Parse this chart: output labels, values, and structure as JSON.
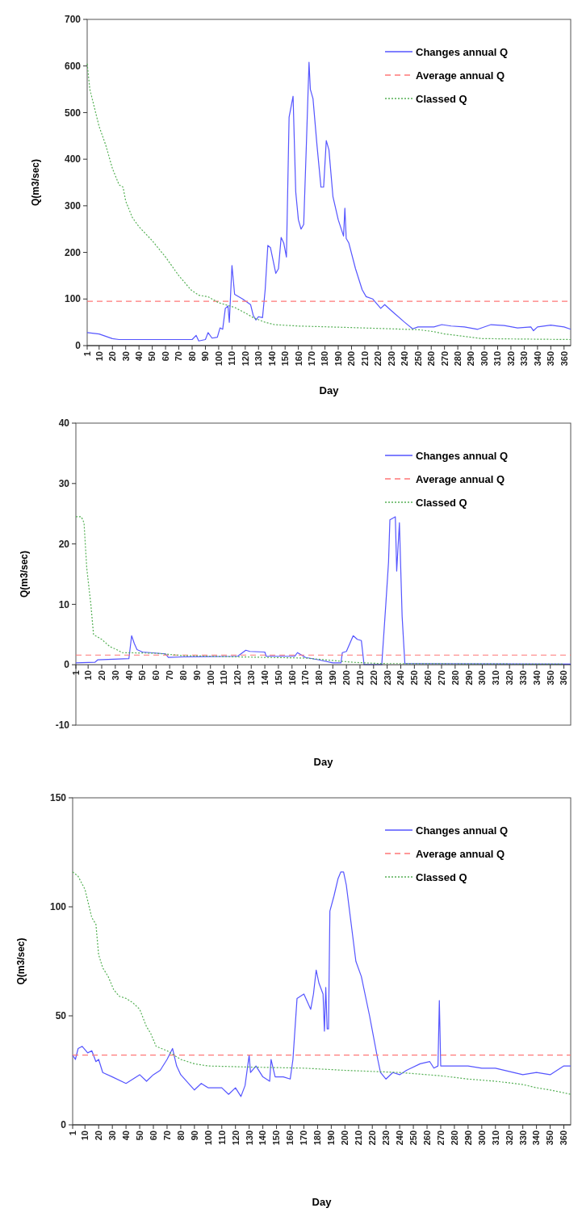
{
  "chart_data": [
    {
      "type": "line",
      "xlabel": "Day",
      "ylabel": "Q(m3/sec)",
      "xlim": [
        1,
        365
      ],
      "xticks": [
        1,
        10,
        20,
        30,
        40,
        50,
        60,
        70,
        80,
        90,
        100,
        110,
        120,
        130,
        140,
        150,
        160,
        170,
        180,
        190,
        200,
        210,
        220,
        230,
        240,
        250,
        260,
        270,
        280,
        290,
        300,
        310,
        320,
        330,
        340,
        350,
        360
      ],
      "ylim": [
        0,
        700
      ],
      "yticks": [
        0,
        100,
        200,
        300,
        400,
        500,
        600,
        700
      ],
      "legend": "top right",
      "grid": false,
      "series": [
        {
          "name": "Changes annual Q",
          "color": "#5555ff",
          "line_style": "solid",
          "x": [
            1,
            10,
            20,
            25,
            80,
            83,
            85,
            90,
            92,
            95,
            99,
            101,
            103,
            105,
            107,
            108,
            110,
            112,
            118,
            124,
            126,
            128,
            130,
            133,
            135,
            137,
            139,
            143,
            145,
            147,
            149,
            151,
            153,
            156,
            158,
            160,
            162,
            164,
            166,
            168,
            169,
            171,
            174,
            177,
            179,
            181,
            183,
            186,
            190,
            194,
            195,
            196,
            198,
            203,
            208,
            211,
            216,
            222,
            225,
            230,
            240,
            246,
            250,
            262,
            268,
            275,
            285,
            295,
            305,
            315,
            325,
            335,
            337,
            340,
            350,
            360,
            365
          ],
          "values": [
            28,
            25,
            15,
            13,
            13,
            22,
            10,
            13,
            28,
            16,
            18,
            38,
            35,
            80,
            85,
            50,
            172,
            110,
            100,
            88,
            65,
            55,
            62,
            60,
            120,
            215,
            210,
            155,
            165,
            232,
            220,
            190,
            490,
            535,
            330,
            270,
            250,
            260,
            430,
            608,
            550,
            530,
            430,
            340,
            340,
            440,
            420,
            320,
            270,
            235,
            295,
            230,
            220,
            165,
            120,
            105,
            100,
            80,
            88,
            75,
            50,
            36,
            40,
            40,
            45,
            42,
            40,
            35,
            45,
            43,
            38,
            40,
            32,
            40,
            44,
            40,
            35
          ]
        },
        {
          "name": "Average annual Q",
          "color": "#ff7777",
          "line_style": "dashed",
          "x": [
            1,
            365
          ],
          "values": [
            95,
            95
          ]
        },
        {
          "name": "Classed Q",
          "color": "#55b055",
          "line_style": "dotted",
          "x": [
            1,
            3,
            10,
            15,
            20,
            25,
            28,
            30,
            35,
            40,
            50,
            60,
            70,
            79,
            85,
            92,
            100,
            112,
            120,
            126,
            135,
            142,
            160,
            197,
            230,
            251,
            262,
            270,
            284,
            298,
            365
          ],
          "values": [
            605,
            550,
            470,
            430,
            380,
            345,
            340,
            310,
            275,
            255,
            225,
            190,
            150,
            120,
            108,
            105,
            92,
            82,
            70,
            60,
            50,
            45,
            42,
            39,
            36,
            34,
            30,
            25,
            20,
            15,
            13
          ]
        }
      ]
    },
    {
      "type": "line",
      "xlabel": "Day",
      "ylabel": "Q(m3/sec)",
      "xlim": [
        1,
        365
      ],
      "xticks": [
        1,
        10,
        20,
        30,
        40,
        50,
        60,
        70,
        80,
        90,
        100,
        110,
        120,
        130,
        140,
        150,
        160,
        170,
        180,
        190,
        200,
        210,
        220,
        230,
        240,
        250,
        260,
        270,
        280,
        290,
        300,
        310,
        320,
        330,
        340,
        350,
        360
      ],
      "ylim": [
        -10,
        40
      ],
      "yticks": [
        -10,
        0,
        10,
        20,
        30,
        40
      ],
      "legend": "top right",
      "grid": false,
      "series": [
        {
          "name": "Changes annual Q",
          "color": "#5555ff",
          "line_style": "solid",
          "x": [
            1,
            15,
            17,
            40,
            42,
            44,
            46,
            50,
            67,
            69,
            80,
            120,
            126,
            129,
            140,
            141,
            162,
            164,
            170,
            180,
            190,
            196,
            197,
            200,
            205,
            208,
            211,
            213,
            226,
            229,
            231,
            232,
            236,
            237,
            239,
            241,
            243,
            365
          ],
          "values": [
            0.3,
            0.4,
            0.8,
            1,
            4.8,
            3.5,
            2.5,
            2.1,
            1.8,
            1.2,
            1.3,
            1.4,
            2.4,
            2.2,
            2.1,
            1.4,
            1.4,
            2,
            1.2,
            0.8,
            0.3,
            0.3,
            2,
            2.2,
            4.8,
            4.2,
            4,
            0,
            0,
            10,
            17,
            24,
            24.5,
            15.5,
            23.5,
            8,
            0.2,
            0.1
          ]
        },
        {
          "name": "Average annual Q",
          "color": "#ff7777",
          "line_style": "dashed",
          "x": [
            1,
            365
          ],
          "values": [
            1.6,
            1.6
          ]
        },
        {
          "name": "Classed Q",
          "color": "#55b055",
          "line_style": "dotted",
          "x": [
            1,
            5,
            7,
            9,
            12,
            14,
            20,
            26,
            31,
            35,
            60,
            80,
            120,
            170,
            190,
            205,
            225,
            360
          ],
          "values": [
            24.5,
            24.5,
            23.5,
            16,
            10,
            5,
            4.2,
            3,
            2.5,
            2,
            1.9,
            1.5,
            1.3,
            1.1,
            0.7,
            0.4,
            0.2,
            0.1
          ]
        }
      ]
    },
    {
      "type": "line",
      "xlabel": "Day",
      "ylabel": "Q(m3/sec)",
      "xlim": [
        1,
        365
      ],
      "xticks": [
        1,
        10,
        20,
        30,
        40,
        50,
        60,
        70,
        80,
        90,
        100,
        110,
        120,
        130,
        140,
        150,
        160,
        170,
        180,
        190,
        200,
        210,
        220,
        230,
        240,
        250,
        260,
        270,
        280,
        290,
        300,
        310,
        320,
        330,
        340,
        350,
        360
      ],
      "ylim": [
        0,
        150
      ],
      "yticks": [
        0,
        50,
        100,
        150
      ],
      "legend": "top right",
      "grid": false,
      "series": [
        {
          "name": "Changes annual Q",
          "color": "#5555ff",
          "line_style": "solid",
          "x": [
            1,
            3,
            5,
            8,
            12,
            15,
            18,
            20,
            23,
            30,
            40,
            50,
            55,
            60,
            65,
            70,
            74,
            77,
            80,
            90,
            95,
            100,
            110,
            115,
            120,
            124,
            127,
            130,
            131,
            135,
            140,
            145,
            146,
            149,
            155,
            160,
            162,
            165,
            170,
            175,
            177,
            179,
            181,
            184,
            185,
            186,
            187,
            188,
            189,
            192,
            195,
            197,
            199,
            201,
            204,
            208,
            212,
            218,
            224,
            226,
            230,
            235,
            240,
            245,
            255,
            262,
            265,
            268,
            269,
            270,
            280,
            290,
            300,
            310,
            330,
            340,
            350,
            360,
            365
          ],
          "values": [
            32,
            30,
            35,
            36,
            33,
            34,
            29,
            30,
            24,
            22,
            19,
            23,
            20,
            23,
            25,
            30,
            35,
            27,
            23,
            16,
            19,
            17,
            17,
            14,
            17,
            13,
            18,
            32,
            24,
            27,
            22,
            20,
            30,
            22,
            22,
            21,
            30,
            58,
            60,
            53,
            60,
            71,
            65,
            60,
            43,
            63,
            44,
            44,
            98,
            105,
            113,
            116,
            116,
            110,
            95,
            75,
            68,
            50,
            30,
            24,
            21,
            24,
            23,
            25,
            28,
            29,
            26,
            27,
            57,
            27,
            27,
            27,
            26,
            26,
            23,
            24,
            23,
            27,
            27
          ]
        },
        {
          "name": "Average annual Q",
          "color": "#ff7777",
          "line_style": "dashed",
          "x": [
            1,
            365
          ],
          "values": [
            32,
            32
          ]
        },
        {
          "name": "Classed Q",
          "color": "#55b055",
          "line_style": "dotted",
          "x": [
            1,
            5,
            10,
            15,
            18,
            20,
            23,
            27,
            31,
            35,
            40,
            45,
            50,
            55,
            58,
            62,
            70,
            80,
            90,
            100,
            130,
            170,
            200,
            240,
            260,
            270,
            290,
            310,
            330,
            340,
            350,
            365
          ],
          "values": [
            116,
            114,
            108,
            95,
            92,
            78,
            72,
            68,
            62,
            59,
            58,
            56,
            53,
            45,
            42,
            36,
            34,
            30,
            28,
            27,
            26.5,
            26,
            25,
            24,
            23,
            22.5,
            21,
            20,
            18.5,
            17,
            16,
            14
          ]
        }
      ]
    }
  ]
}
